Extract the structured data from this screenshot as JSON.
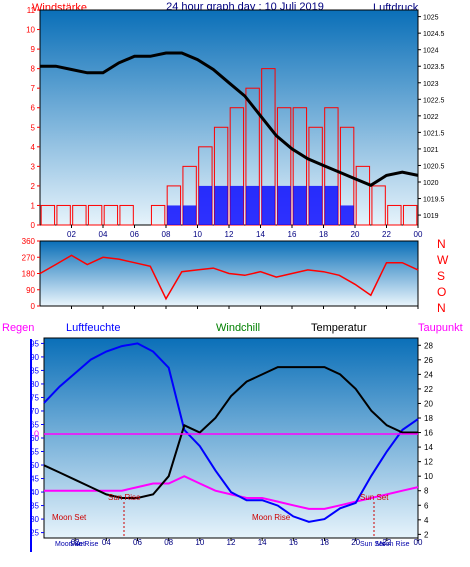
{
  "header": {
    "title": "24 hour graph day : 10 Juli 2019",
    "left_label": "Windstärke",
    "right_label": "Luftdruck"
  },
  "panel2": {
    "directions": [
      "N",
      "W",
      "S",
      "O",
      "N"
    ]
  },
  "panel3": {
    "labels": {
      "regen": "Regen",
      "luftfeuchte": "Luftfeuchte",
      "windchill": "Windchill",
      "temperatur": "Temperatur",
      "taupunkt": "Taupunkt"
    },
    "zero_label": "0",
    "events": {
      "moon_set_top": "Moon Set",
      "moon_set_bottom": "Moon Set",
      "sun_rise_top": "Sun Rise",
      "sun_rise_bottom": "Sun Rise",
      "sun_set_top": "Sun Set",
      "sun_set_bottom": "Sun Set",
      "moon_rise_top": "Moon Rise",
      "moon_rise_bottom": "Moon Rise"
    }
  },
  "colors": {
    "wind_speed": "#ff0000",
    "wind_gust": "#0000ff",
    "pressure": "#000000",
    "wind_direction": "#ff0000",
    "humidity": "#0000ff",
    "temperature": "#000000",
    "dewpoint": "#ff00ff",
    "rain": "#ff00ff",
    "sky_top": "#0a6fb8",
    "sky_bottom": "#e6f3fb"
  },
  "chart_data": [
    {
      "type": "bar",
      "name_key": "wind-pressure",
      "x_ticks": [
        "02",
        "04",
        "06",
        "08",
        "10",
        "12",
        "14",
        "16",
        "18",
        "20",
        "22",
        "00"
      ],
      "y_left_ticks": [
        0,
        1,
        2,
        3,
        4,
        5,
        6,
        7,
        8,
        9,
        10,
        11
      ],
      "y_left_range": [
        0,
        11
      ],
      "y_right_ticks": [
        1019,
        1019.5,
        1020,
        1020.5,
        1021,
        1021.5,
        1022,
        1022.5,
        1023,
        1023.5,
        1024,
        1024.5,
        1025
      ],
      "y_right_ticks_labels": [
        "1019",
        "1019.5",
        "1020",
        "1020.5",
        "1021",
        "1021.5",
        "1022",
        "1022.5",
        "1023",
        "1023.5",
        "1024",
        "1024.5",
        "1025"
      ],
      "y_right_range": [
        1018.7,
        1025.2
      ],
      "pressure": {
        "x": [
          0,
          1,
          2,
          3,
          4,
          5,
          6,
          7,
          8,
          9,
          10,
          11,
          12,
          13,
          14,
          15,
          16,
          17,
          18,
          19,
          20,
          21,
          22,
          23,
          24
        ],
        "y": [
          1023.5,
          1023.5,
          1023.4,
          1023.3,
          1023.3,
          1023.6,
          1023.8,
          1023.8,
          1023.9,
          1023.9,
          1023.7,
          1023.4,
          1023.0,
          1022.6,
          1022.0,
          1021.4,
          1021.0,
          1020.7,
          1020.5,
          1020.3,
          1020.1,
          1019.9,
          1020.2,
          1020.3,
          1020.2
        ]
      },
      "wind_speed_bars": {
        "x": [
          0.5,
          1.5,
          2.5,
          3.5,
          4.5,
          5.5,
          6.5,
          7.5,
          8.5,
          9.5,
          10.5,
          11.5,
          12.5,
          13.5,
          14.5,
          15.5,
          16.5,
          17.5,
          18.5,
          19.5,
          20.5,
          21.5,
          22.5,
          23.5
        ],
        "y": [
          1,
          1,
          1,
          1,
          1,
          1,
          0,
          1,
          2,
          3,
          4,
          5,
          6,
          7,
          8,
          6,
          6,
          5,
          6,
          5,
          3,
          2,
          1,
          1
        ]
      },
      "wind_gust_bars": {
        "x": [
          8.5,
          9.5,
          10.5,
          11.5,
          12.5,
          13.5,
          14.5,
          15.5,
          16.5,
          17.5,
          18.5,
          19.5
        ],
        "y": [
          1,
          1,
          2,
          2,
          2,
          2,
          2,
          2,
          2,
          2,
          2,
          1
        ]
      }
    },
    {
      "type": "line",
      "name_key": "wind-direction",
      "y_ticks": [
        0,
        90,
        180,
        270,
        360
      ],
      "y_range": [
        0,
        360
      ],
      "x": [
        0,
        1,
        2,
        3,
        4,
        5,
        6,
        7,
        8,
        9,
        10,
        11,
        12,
        13,
        14,
        15,
        16,
        17,
        18,
        19,
        20,
        21,
        22,
        23,
        24
      ],
      "y": [
        180,
        230,
        280,
        230,
        270,
        260,
        240,
        220,
        40,
        190,
        200,
        210,
        180,
        170,
        190,
        160,
        180,
        200,
        190,
        170,
        120,
        60,
        240,
        240,
        200
      ]
    },
    {
      "type": "line",
      "name_key": "humidity-temperature",
      "x_ticks": [
        "02",
        "04",
        "06",
        "08",
        "10",
        "12",
        "14",
        "16",
        "18",
        "20",
        "22",
        "00"
      ],
      "y_left_ticks": [
        25,
        30,
        35,
        40,
        45,
        50,
        55,
        60,
        65,
        70,
        75,
        80,
        85,
        90,
        95
      ],
      "y_left_range": [
        23,
        97
      ],
      "y_right_ticks": [
        2,
        4,
        6,
        8,
        10,
        12,
        14,
        16,
        18,
        20,
        22,
        24,
        26,
        28
      ],
      "y_right_range": [
        1.5,
        29
      ],
      "humidity": {
        "x": [
          0,
          1,
          2,
          3,
          4,
          5,
          6,
          7,
          8,
          9,
          10,
          11,
          12,
          13,
          14,
          15,
          16,
          17,
          18,
          19,
          20,
          21,
          22,
          23,
          24
        ],
        "y": [
          73,
          79,
          84,
          89,
          92,
          94,
          95,
          92,
          86,
          63,
          57,
          48,
          40,
          37,
          37,
          35,
          31,
          29,
          30,
          34,
          36,
          46,
          55,
          63,
          67
        ]
      },
      "temperature": {
        "x": [
          0,
          1,
          2,
          3,
          4,
          5,
          6,
          7,
          8,
          9,
          10,
          11,
          12,
          13,
          14,
          15,
          16,
          17,
          18,
          19,
          20,
          21,
          22,
          23,
          24
        ],
        "y": [
          11.5,
          10.5,
          9.5,
          8.5,
          7.5,
          7,
          7,
          7.5,
          10,
          17,
          16,
          18,
          21,
          23,
          24,
          25,
          25,
          25,
          25,
          24,
          22,
          19,
          17,
          16,
          16
        ]
      },
      "dewpoint": {
        "x": [
          0,
          1,
          2,
          3,
          4,
          5,
          6,
          7,
          8,
          9,
          10,
          11,
          12,
          13,
          14,
          15,
          16,
          17,
          18,
          19,
          20,
          21,
          22,
          23,
          24
        ],
        "y": [
          8,
          8,
          8,
          8,
          8,
          8,
          8.5,
          9,
          9,
          10,
          9,
          8,
          7.5,
          7,
          7,
          6.5,
          6,
          5.5,
          5.5,
          6,
          6.5,
          7,
          7.5,
          8,
          8.5
        ]
      }
    }
  ]
}
